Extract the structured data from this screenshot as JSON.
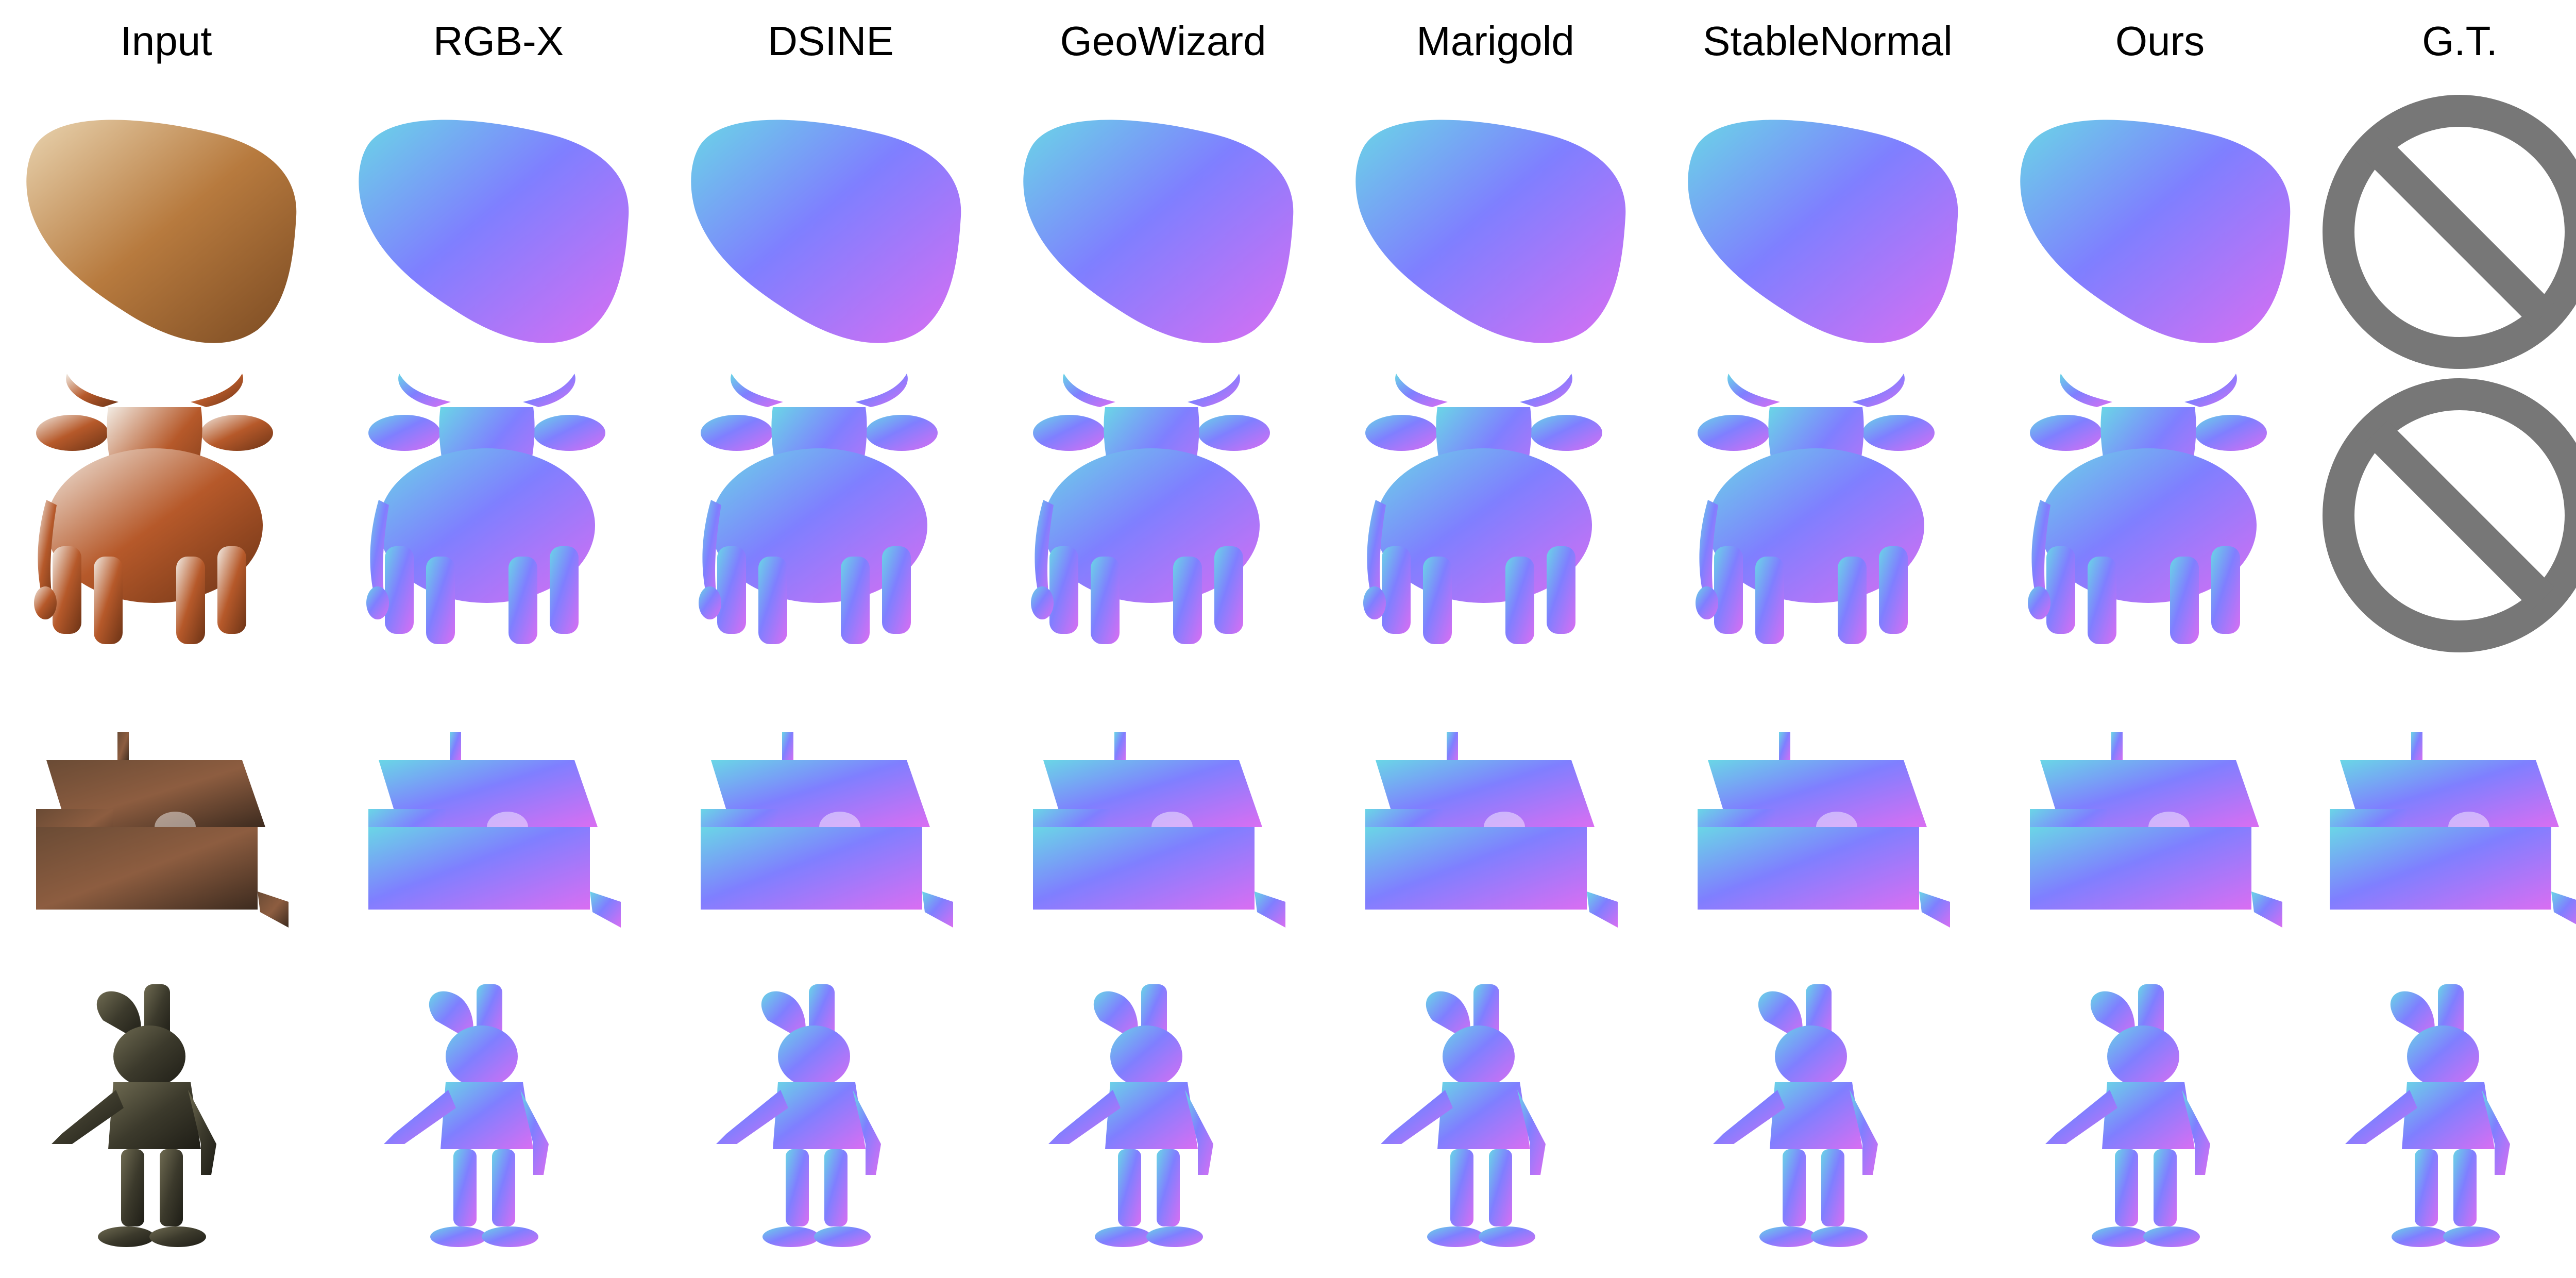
{
  "columns": [
    "Input",
    "RGB-X",
    "DSINE",
    "GeoWizard",
    "Marigold",
    "StableNormal",
    "Ours",
    "G.T."
  ],
  "rows": [
    {
      "subject": "croissant",
      "gt_available": false
    },
    {
      "subject": "cow",
      "gt_available": false
    },
    {
      "subject": "house",
      "gt_available": true
    },
    {
      "subject": "animatronic-rabbit",
      "gt_available": true
    }
  ],
  "colors": {
    "normal_base": "#7f7fff",
    "normal_left": "#6ad6e6",
    "normal_right": "#d96ef2",
    "normal_top": "#86ffd0",
    "not_available_symbol": "#777777"
  }
}
